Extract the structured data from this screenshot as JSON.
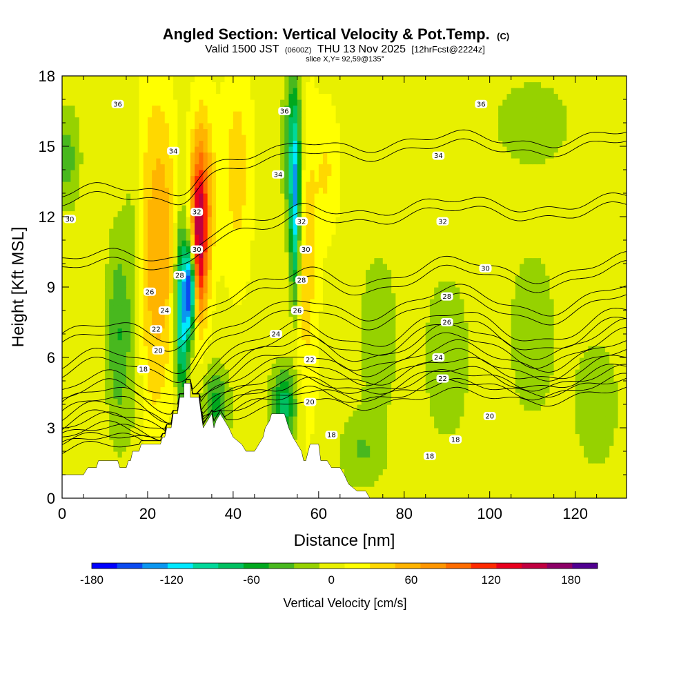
{
  "chart_data": {
    "type": "heatmap",
    "title": "Angled Section: Vertical Velocity & Pot.Temp.",
    "title_mark": "(C)",
    "subtitle_a": "Valid 1500 JST",
    "subtitle_b": "(0600Z)",
    "subtitle_c": "THU 13 Nov 2025",
    "subtitle_d": "[12hrFcst@2224z]",
    "slice_label": "slice X,Y= 92,59@135°",
    "xlabel": "Distance [nm]",
    "ylabel": "Height [Kft MSL]",
    "xlim": [
      0,
      132
    ],
    "ylim": [
      0,
      18
    ],
    "x_ticks": [
      0,
      20,
      40,
      60,
      80,
      100,
      120
    ],
    "x_tick_labels": [
      "0",
      "20",
      "40",
      "60",
      "80",
      "100",
      "120"
    ],
    "y_ticks": [
      0,
      3,
      6,
      9,
      12,
      15,
      18
    ],
    "y_tick_labels": [
      "0",
      "3",
      "6",
      "9",
      "12",
      "15",
      "18"
    ],
    "colorbar": {
      "label": "Vertical Velocity [cm/s]",
      "min": -180,
      "max": 200,
      "step": 20,
      "tick_values": [
        -180,
        -120,
        -60,
        0,
        60,
        120,
        180
      ],
      "tick_labels": [
        "-180",
        "-120",
        "-60",
        "0",
        "60",
        "120",
        "180"
      ],
      "colors": [
        "#0000ff",
        "#0a4af0",
        "#0a96f0",
        "#00e8ff",
        "#00d89a",
        "#00c060",
        "#00a81e",
        "#48b81e",
        "#96d200",
        "#e8f000",
        "#ffff00",
        "#ffd800",
        "#ffb400",
        "#ff9600",
        "#ff6c00",
        "#ff2a00",
        "#e8001e",
        "#c00040",
        "#8c0066",
        "#500090"
      ]
    },
    "vertical_velocity": {
      "background_cm_s": 10,
      "features": [
        {
          "x": 1,
          "z": 14.5,
          "width_nm": 3,
          "depth_kft": 4,
          "value_cm_s": -40
        },
        {
          "x": 13,
          "z": 7,
          "width_nm": 2.5,
          "depth_kft": 8,
          "value_cm_s": -50
        },
        {
          "x": 20,
          "z": 10,
          "width_nm": 4,
          "depth_kft": 16,
          "value_cm_s": 50
        },
        {
          "x": 24,
          "z": 11,
          "width_nm": 3,
          "depth_kft": 12,
          "value_cm_s": 45
        },
        {
          "x": 17,
          "z": 9,
          "width_nm": 2.5,
          "depth_kft": 14,
          "value_cm_s": -40
        },
        {
          "x": 28,
          "z": 8,
          "width_nm": 1.5,
          "depth_kft": 7,
          "value_cm_s": -130
        },
        {
          "x": 30,
          "z": 9,
          "width_nm": 1.2,
          "depth_kft": 4,
          "value_cm_s": -180
        },
        {
          "x": 32,
          "z": 11,
          "width_nm": 2,
          "depth_kft": 7,
          "value_cm_s": 130
        },
        {
          "x": 33,
          "z": 13,
          "width_nm": 3,
          "depth_kft": 8,
          "value_cm_s": 60
        },
        {
          "x": 36,
          "z": 4,
          "width_nm": 3,
          "depth_kft": 3,
          "value_cm_s": -60
        },
        {
          "x": 41,
          "z": 14,
          "width_nm": 3.5,
          "depth_kft": 10,
          "value_cm_s": 40
        },
        {
          "x": 52,
          "z": 4,
          "width_nm": 3,
          "depth_kft": 3,
          "value_cm_s": -80
        },
        {
          "x": 54.5,
          "z": 12,
          "width_nm": 1.2,
          "depth_kft": 8,
          "value_cm_s": -110
        },
        {
          "x": 54,
          "z": 15,
          "width_nm": 2,
          "depth_kft": 7,
          "value_cm_s": -70
        },
        {
          "x": 57,
          "z": 10,
          "width_nm": 3,
          "depth_kft": 14,
          "value_cm_s": 40
        },
        {
          "x": 62,
          "z": 14,
          "width_nm": 3,
          "depth_kft": 6,
          "value_cm_s": 30
        },
        {
          "x": 70,
          "z": 2,
          "width_nm": 5,
          "depth_kft": 3,
          "value_cm_s": -30
        },
        {
          "x": 74,
          "z": 7,
          "width_nm": 5,
          "depth_kft": 8,
          "value_cm_s": -20
        },
        {
          "x": 90,
          "z": 6,
          "width_nm": 6,
          "depth_kft": 8,
          "value_cm_s": -20
        },
        {
          "x": 110,
          "z": 7,
          "width_nm": 6,
          "depth_kft": 8,
          "value_cm_s": -20
        },
        {
          "x": 110,
          "z": 16,
          "width_nm": 10,
          "depth_kft": 4,
          "value_cm_s": -20
        },
        {
          "x": 125,
          "z": 4,
          "width_nm": 6,
          "depth_kft": 6,
          "value_cm_s": -20
        }
      ]
    },
    "terrain_kft": [
      [
        0,
        1.0
      ],
      [
        5,
        1.0
      ],
      [
        6,
        1.3
      ],
      [
        8,
        1.3
      ],
      [
        8.5,
        1.6
      ],
      [
        13,
        1.6
      ],
      [
        13.5,
        1.3
      ],
      [
        15,
        1.3
      ],
      [
        15.5,
        1.6
      ],
      [
        16,
        1.6
      ],
      [
        16.5,
        2.0
      ],
      [
        18,
        2.0
      ],
      [
        18.5,
        2.3
      ],
      [
        23,
        2.3
      ],
      [
        23.5,
        2.6
      ],
      [
        24,
        2.6
      ],
      [
        24.5,
        3.0
      ],
      [
        25.5,
        3.0
      ],
      [
        26,
        3.6
      ],
      [
        27,
        3.6
      ],
      [
        27.5,
        4.3
      ],
      [
        28.5,
        4.3
      ],
      [
        28.5,
        4.9
      ],
      [
        30,
        4.9
      ],
      [
        30,
        4.3
      ],
      [
        32,
        4.3
      ],
      [
        32.5,
        3.6
      ],
      [
        33,
        3.0
      ],
      [
        34,
        3.3
      ],
      [
        35,
        3.6
      ],
      [
        35.5,
        3.0
      ],
      [
        36,
        3.3
      ],
      [
        37,
        3.6
      ],
      [
        38,
        3.3
      ],
      [
        39,
        3.0
      ],
      [
        40,
        2.6
      ],
      [
        42,
        2.3
      ],
      [
        43,
        2.0
      ],
      [
        45,
        2.0
      ],
      [
        46,
        2.3
      ],
      [
        47,
        2.6
      ],
      [
        47.5,
        3.0
      ],
      [
        48.5,
        3.3
      ],
      [
        49,
        3.6
      ],
      [
        52,
        3.6
      ],
      [
        53,
        3.0
      ],
      [
        54,
        2.6
      ],
      [
        55,
        2.3
      ],
      [
        56,
        2.0
      ],
      [
        56.5,
        1.6
      ],
      [
        57,
        1.6
      ],
      [
        58,
        2.3
      ],
      [
        60,
        2.3
      ],
      [
        60.5,
        1.6
      ],
      [
        62,
        1.6
      ],
      [
        63,
        1.3
      ],
      [
        65,
        1.3
      ],
      [
        66,
        1.0
      ],
      [
        67,
        0.6
      ],
      [
        69,
        0.3
      ],
      [
        71,
        0.3
      ],
      [
        72,
        0
      ],
      [
        132,
        0
      ]
    ],
    "theta_contours": [
      {
        "theta": 18,
        "z0": 3.2,
        "ramp": 3.8,
        "dip": 0.3,
        "label_pos": [
          [
            19,
            5.5
          ],
          [
            63,
            2.7
          ],
          [
            92,
            2.5
          ],
          [
            86,
            1.8
          ]
        ]
      },
      {
        "theta": 20,
        "z0": 3.5,
        "ramp": 4.0,
        "dip": 0.4,
        "label_pos": [
          [
            22.5,
            6.3
          ],
          [
            58,
            4.1
          ],
          [
            100,
            3.5
          ]
        ]
      },
      {
        "theta": 22,
        "z0": 3.9,
        "ramp": 4.2,
        "dip": 0.5,
        "label_pos": [
          [
            22,
            7.2
          ],
          [
            58,
            5.9
          ],
          [
            89,
            5.1
          ]
        ]
      },
      {
        "theta": 24,
        "z0": 4.4,
        "ramp": 4.4,
        "dip": 0.6,
        "label_pos": [
          [
            24,
            8.0
          ],
          [
            50,
            7.0
          ],
          [
            88,
            6.0
          ]
        ]
      },
      {
        "theta": 26,
        "z0": 5.0,
        "ramp": 4.6,
        "dip": 0.7,
        "label_pos": [
          [
            20.5,
            8.8
          ],
          [
            55,
            8.0
          ],
          [
            90,
            7.5
          ]
        ]
      },
      {
        "theta": 28,
        "z0": 5.6,
        "ramp": 4.6,
        "dip": 0.7,
        "label_pos": [
          [
            27.5,
            9.5
          ],
          [
            56,
            9.3
          ],
          [
            90,
            8.6
          ]
        ]
      },
      {
        "theta": 30,
        "z0": 6.7,
        "ramp": 4.7,
        "dip": 0.6,
        "label_pos": [
          [
            31.5,
            10.6
          ],
          [
            57,
            10.6
          ],
          [
            99,
            9.8
          ]
        ]
      },
      {
        "theta": 32,
        "z0": 8.0,
        "ramp": 4.8,
        "dip": 0.5,
        "label_pos": [
          [
            31.5,
            12.2
          ],
          [
            56,
            11.8
          ],
          [
            89,
            11.8
          ]
        ]
      },
      {
        "theta": 34,
        "z0": 11.0,
        "ramp": 3.9,
        "dip": 0.3,
        "label_pos": [
          [
            26,
            14.8
          ],
          [
            50.5,
            13.8
          ],
          [
            88,
            14.6
          ]
        ]
      },
      {
        "theta": 36,
        "z0": 13.8,
        "ramp": 3.8,
        "dip": 0.3,
        "label_pos": [
          [
            13,
            16.8
          ],
          [
            52,
            16.5
          ],
          [
            98,
            16.8
          ]
        ]
      }
    ],
    "edge_label": "30"
  }
}
